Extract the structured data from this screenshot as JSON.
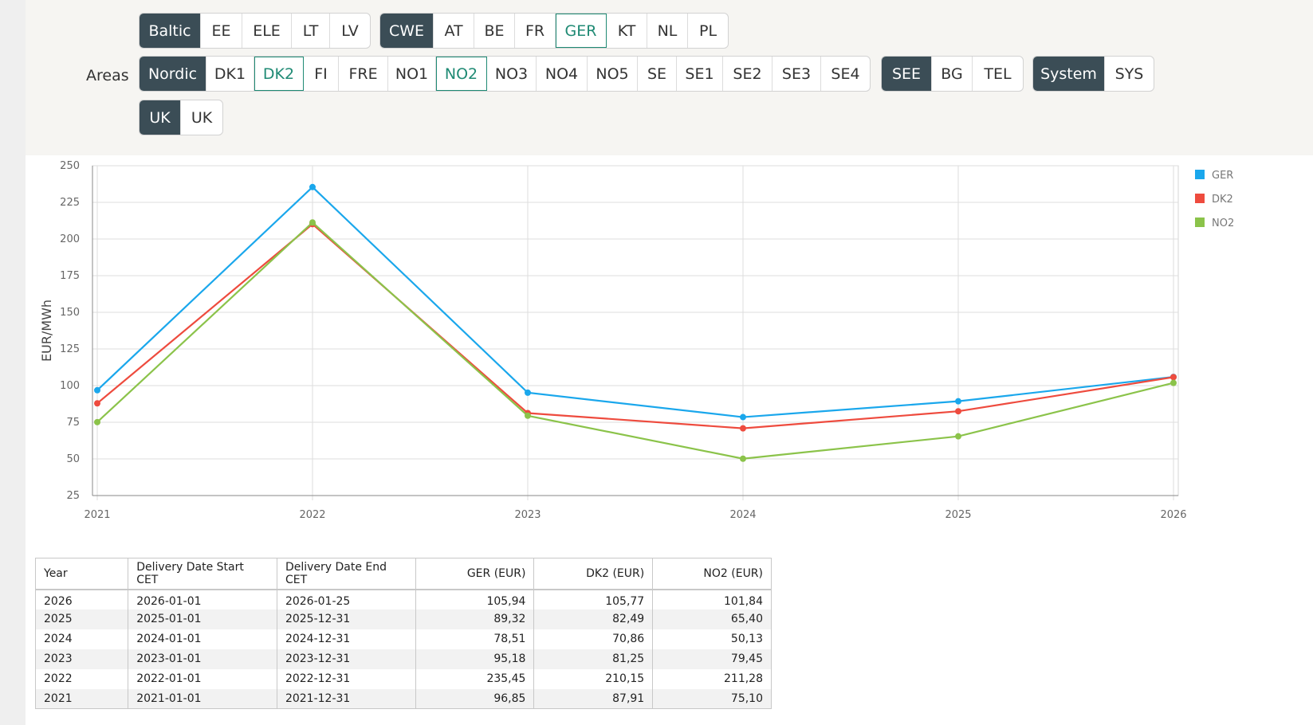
{
  "filters": {
    "areas_label": "Areas",
    "groups": [
      {
        "items": [
          "Baltic",
          "EE",
          "ELE",
          "LT",
          "LV"
        ],
        "selected": []
      },
      {
        "items": [
          "CWE",
          "AT",
          "BE",
          "FR",
          "GER",
          "KT",
          "NL",
          "PL"
        ],
        "selected": [
          "GER"
        ]
      },
      {
        "items": [
          "Nordic",
          "DK1",
          "DK2",
          "FI",
          "FRE",
          "NO1",
          "NO2",
          "NO3",
          "NO4",
          "NO5",
          "SE",
          "SE1",
          "SE2",
          "SE3",
          "SE4"
        ],
        "selected": [
          "DK2",
          "NO2"
        ]
      },
      {
        "items": [
          "SEE",
          "BG",
          "TEL"
        ],
        "selected": []
      },
      {
        "items": [
          "System",
          "SYS"
        ],
        "selected": []
      },
      {
        "items": [
          "UK",
          "UK"
        ],
        "selected": []
      }
    ],
    "accent_color": "#1f8a74",
    "header_color": "#3b4d56"
  },
  "chart_data": {
    "type": "line",
    "x": [
      2021,
      2022,
      2023,
      2024,
      2025,
      2026
    ],
    "ylabel": "EUR/MWh",
    "ylim": [
      25,
      250
    ],
    "yticks": [
      25,
      50,
      75,
      100,
      125,
      150,
      175,
      200,
      225,
      250
    ],
    "grid": true,
    "legend": "top-right",
    "series": [
      {
        "name": "GER",
        "color": "#1aa7ec",
        "values": [
          96.85,
          235.45,
          95.18,
          78.51,
          89.32,
          105.94
        ]
      },
      {
        "name": "DK2",
        "color": "#ee4b3e",
        "values": [
          87.91,
          210.15,
          81.25,
          70.86,
          82.49,
          105.77
        ]
      },
      {
        "name": "NO2",
        "color": "#8bc34a",
        "values": [
          75.1,
          211.28,
          79.45,
          50.13,
          65.4,
          101.84
        ]
      }
    ]
  },
  "table": {
    "headers": [
      "Year",
      "Delivery Date Start CET",
      "Delivery Date End CET",
      "GER (EUR)",
      "DK2 (EUR)",
      "NO2 (EUR)"
    ],
    "rows": [
      [
        "2026",
        "2026-01-01",
        "2026-01-25",
        "105,94",
        "105,77",
        "101,84"
      ],
      [
        "2025",
        "2025-01-01",
        "2025-12-31",
        "89,32",
        "82,49",
        "65,40"
      ],
      [
        "2024",
        "2024-01-01",
        "2024-12-31",
        "78,51",
        "70,86",
        "50,13"
      ],
      [
        "2023",
        "2023-01-01",
        "2023-12-31",
        "95,18",
        "81,25",
        "79,45"
      ],
      [
        "2022",
        "2022-01-01",
        "2022-12-31",
        "235,45",
        "210,15",
        "211,28"
      ],
      [
        "2021",
        "2021-01-01",
        "2021-12-31",
        "96,85",
        "87,91",
        "75,10"
      ]
    ]
  }
}
